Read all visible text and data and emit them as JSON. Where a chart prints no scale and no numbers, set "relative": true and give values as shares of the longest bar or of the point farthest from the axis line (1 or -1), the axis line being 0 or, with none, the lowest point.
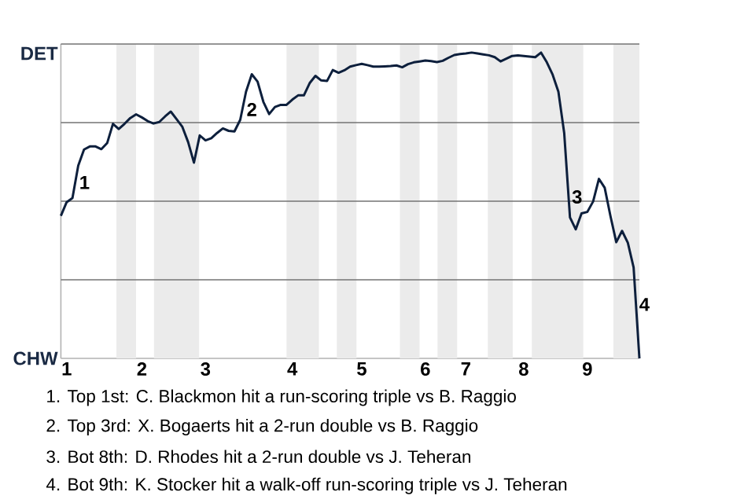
{
  "chart_data": {
    "type": "line",
    "relative": true,
    "categories": [
      null,
      "1",
      null,
      null,
      null,
      null,
      null,
      null,
      null,
      null,
      null,
      null,
      null,
      null,
      "2",
      null,
      null,
      null,
      null,
      null,
      null,
      null,
      null,
      null,
      null,
      "3",
      null,
      null,
      null,
      null,
      null,
      null,
      null,
      null,
      null,
      null,
      null,
      null,
      null,
      null,
      "4",
      null,
      null,
      null,
      null,
      null,
      null,
      null,
      null,
      null,
      null,
      null,
      "5",
      null,
      null,
      null,
      null,
      null,
      null,
      null,
      null,
      null,
      null,
      "6",
      null,
      null,
      null,
      null,
      null,
      null,
      "7",
      null,
      null,
      null,
      null,
      null,
      null,
      null,
      null,
      null,
      "8",
      null,
      null,
      null,
      null,
      null,
      null,
      null,
      null,
      null,
      null,
      "9",
      null,
      null,
      null,
      null,
      null,
      null,
      null,
      null,
      null
    ],
    "values": [
      0.466,
      0.511,
      0.524,
      0.63,
      0.683,
      0.693,
      0.693,
      0.684,
      0.704,
      0.767,
      0.75,
      0.767,
      0.786,
      0.798,
      0.788,
      0.776,
      0.768,
      0.773,
      0.791,
      0.807,
      0.782,
      0.757,
      0.707,
      0.64,
      0.729,
      0.713,
      0.72,
      0.737,
      0.752,
      0.744,
      0.742,
      0.78,
      0.872,
      0.929,
      0.905,
      0.839,
      0.799,
      0.822,
      0.829,
      0.829,
      0.846,
      0.86,
      0.86,
      0.9,
      0.924,
      0.909,
      0.907,
      0.943,
      0.934,
      0.942,
      0.954,
      0.959,
      0.963,
      0.959,
      0.954,
      0.954,
      0.955,
      0.956,
      0.958,
      0.952,
      0.962,
      0.968,
      0.971,
      0.974,
      0.972,
      0.969,
      0.973,
      0.983,
      0.992,
      0.995,
      0.997,
      1,
      0.997,
      0.994,
      0.991,
      0.985,
      0.971,
      0.98,
      0.989,
      0.991,
      0.989,
      0.987,
      0.985,
      1,
      0.968,
      0.928,
      0.872,
      0.737,
      0.461,
      0.422,
      0.474,
      0.479,
      0.513,
      0.587,
      0.558,
      0.465,
      0.38,
      0.417,
      0.378,
      0.297,
      0
    ],
    "color": "#0d1f3c",
    "grid": "y",
    "annotations": [
      {
        "text": "1",
        "y": 0.6
      },
      {
        "text": "2",
        "y": 0.839
      },
      {
        "text": "3",
        "y": 0.5
      },
      {
        "text": "4",
        "y": 0.149
      },
      "DET",
      "CHW",
      "1. Top 1st: C. Blackmon hit a run-scoring triple vs B. Raggio",
      "2. Top 3rd: X. Bogaerts hit a 2-run double vs B. Raggio",
      "3. Bot 8th: D. Rhodes hit a 2-run double vs J. Teheran",
      "4. Bot 9th: K. Stocker hit a walk-off run-scoring triple vs J. Teheran"
    ]
  }
}
